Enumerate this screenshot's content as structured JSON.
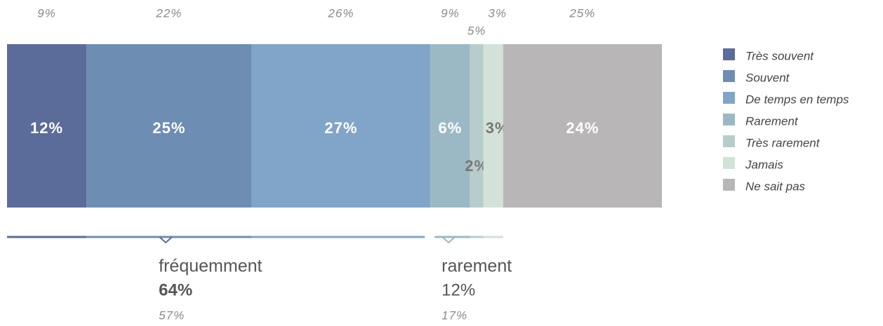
{
  "chart_data": {
    "type": "stacked-bar",
    "series": [
      {
        "name": "Très souvent",
        "color": "#5b6b9a",
        "values": [
          12
        ],
        "value_labels": [
          "12%"
        ],
        "previous": 9,
        "previous_label": "9%"
      },
      {
        "name": "Souvent",
        "color": "#6e8db3",
        "values": [
          25
        ],
        "value_labels": [
          "25%"
        ],
        "previous": 22,
        "previous_label": "22%"
      },
      {
        "name": "De temps en temps",
        "color": "#80a5c8",
        "values": [
          27
        ],
        "value_labels": [
          "27%"
        ],
        "previous": 26,
        "previous_label": "26%"
      },
      {
        "name": "Rarement",
        "color": "#9bb9c5",
        "values": [
          6
        ],
        "value_labels": [
          "6%"
        ],
        "previous": 9,
        "previous_label": "9%"
      },
      {
        "name": "Très rarement",
        "color": "#b6cdcb",
        "values": [
          2
        ],
        "value_labels": [
          "2%"
        ],
        "previous": 5,
        "previous_label": "5%"
      },
      {
        "name": "Jamais",
        "color": "#d3e2d8",
        "values": [
          3
        ],
        "value_labels": [
          "3%"
        ],
        "previous": 3,
        "previous_label": "3%"
      },
      {
        "name": "Ne sait pas",
        "color": "#b8b6b7",
        "values": [
          24
        ],
        "value_labels": [
          "24%"
        ],
        "previous": 25,
        "previous_label": "25%"
      }
    ],
    "groups": [
      {
        "label": "fréquemment",
        "value": 64,
        "value_label": "64%",
        "previous": 57,
        "previous_label": "57%"
      },
      {
        "label": "rarement",
        "value": 12,
        "value_label": "12%",
        "previous": 17,
        "previous_label": "17%"
      }
    ]
  }
}
